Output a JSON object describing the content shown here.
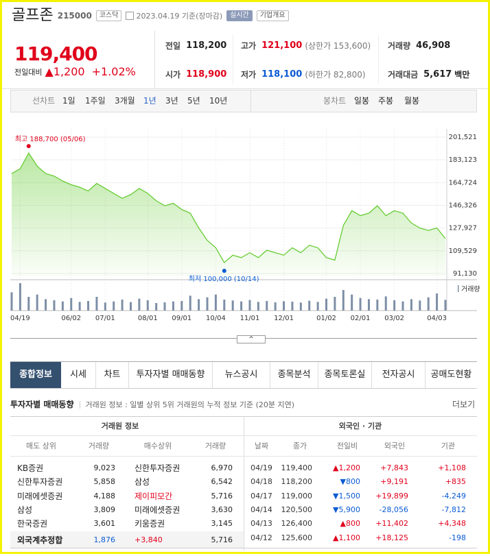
{
  "header": {
    "name": "골프존",
    "code": "215000",
    "market": "코스닥",
    "date": "2023.04.19 기준(장마감)",
    "realtime": "실시간",
    "overview": "기업개요"
  },
  "quote": {
    "price": "119,400",
    "change_label": "전일대비",
    "change": "▲1,200",
    "change_pct": "+1.02%"
  },
  "stats": [
    {
      "label": "전일",
      "value": "118,200",
      "color": "#222"
    },
    {
      "label": "고가",
      "value": "121,100",
      "sub": "(상한가 153,600)",
      "color": "#e0001b"
    },
    {
      "label": "거래량",
      "value": "46,908",
      "color": "#222"
    },
    {
      "label": "시가",
      "value": "118,900",
      "color": "#e0001b"
    },
    {
      "label": "저가",
      "value": "118,100",
      "sub": "(하한가 82,800)",
      "color": "#0a5bd3"
    },
    {
      "label": "거래대금",
      "value": "5,617",
      "unit": "백만",
      "color": "#222"
    }
  ],
  "chart_tabs": {
    "line_label": "선차트",
    "periods": [
      "1일",
      "1주일",
      "3개월",
      "1년",
      "3년",
      "5년",
      "10년"
    ],
    "candle_label": "봉차트",
    "candles": [
      "일봉",
      "주봉",
      "월봉"
    ]
  },
  "chart_data": {
    "type": "line",
    "categories": [
      null,
      "04/19",
      null,
      null,
      null,
      null,
      null,
      "06/02",
      null,
      null,
      null,
      "07/01",
      null,
      null,
      null,
      null,
      "08/01",
      null,
      null,
      null,
      "09/01",
      null,
      null,
      null,
      "10/04",
      null,
      null,
      null,
      "11/01",
      null,
      null,
      null,
      "12/01",
      null,
      null,
      null,
      null,
      "01/02",
      null,
      null,
      null,
      "02/01",
      null,
      null,
      null,
      "03/02",
      null,
      null,
      null,
      null,
      "04/03",
      null
    ],
    "values": [
      172000,
      176000,
      188700,
      178000,
      172000,
      170000,
      166000,
      163000,
      161000,
      158000,
      164000,
      160000,
      156000,
      152000,
      155000,
      160000,
      156000,
      150000,
      146000,
      148000,
      143000,
      140000,
      128000,
      118000,
      112000,
      100000,
      106000,
      104000,
      108000,
      104000,
      110000,
      108000,
      106000,
      112000,
      108000,
      114000,
      112000,
      104000,
      102000,
      130000,
      142000,
      138000,
      140000,
      146000,
      138000,
      142000,
      140000,
      132000,
      128000,
      126000,
      128000,
      119400
    ],
    "color": "#66cc33",
    "ylim": [
      91130,
      201521
    ],
    "yticks": [
      {
        "value": 201521,
        "label": "201,521"
      },
      {
        "value": 183123,
        "label": "183,123"
      },
      {
        "value": 164724,
        "label": "164,724"
      },
      {
        "value": 146326,
        "label": "146,326"
      },
      {
        "value": 127927,
        "label": "127,927"
      },
      {
        "value": 109529,
        "label": "109,529"
      },
      {
        "value": 91130,
        "label": "91,130"
      }
    ],
    "grid": true,
    "high_label": "최고 188,700 (05/06)",
    "low_label": "최저 100,000 (10/14)",
    "volume": {
      "name": "거래량",
      "color": "#7d8ea6",
      "values": [
        80000,
        120000,
        60000,
        70000,
        50000,
        45000,
        40000,
        55000,
        38000,
        42000,
        60000,
        35000,
        40000,
        48000,
        37000,
        52000,
        45000,
        33000,
        36000,
        40000,
        42000,
        65000,
        50000,
        58000,
        70000,
        48000,
        44000,
        40000,
        46000,
        38000,
        42000,
        36000,
        41000,
        39000,
        35000,
        43000,
        38000,
        52000,
        60000,
        90000,
        70000,
        55000,
        50000,
        48000,
        62000,
        45000,
        40000,
        50000,
        44000,
        58000,
        75000,
        46908
      ]
    }
  },
  "main_tabs": [
    "종합정보",
    "시세",
    "차트",
    "투자자별 매매동향",
    "뉴스공시",
    "종목분석",
    "종목토론실",
    "전자공시",
    "공매도현황"
  ],
  "investor": {
    "title": "투자자별 매매동향",
    "description": "거래원 정보 : 일별 상위 5위 거래원의 누적 정보 기준 (20분 지연)",
    "more": "더보기",
    "brokers": {
      "title": "거래원 정보",
      "columns": [
        "매도 상위",
        "거래량",
        "매수상위",
        "거래량"
      ],
      "rows": [
        [
          "KB증권",
          "9,023",
          "신한투자증권",
          "6,970"
        ],
        [
          "신한투자증권",
          "5,858",
          "삼성",
          "6,542"
        ],
        [
          "미래에셋증권",
          "4,188",
          "제이피모간",
          "5,716"
        ],
        [
          "삼성",
          "3,809",
          "미래에셋증권",
          "3,630"
        ],
        [
          "한국증권",
          "3,601",
          "키움증권",
          "3,145"
        ]
      ],
      "total": [
        "외국계추정합",
        "1,876",
        "+3,840",
        "5,716"
      ]
    },
    "flows": {
      "title": "외국인 · 기관",
      "columns": [
        "날짜",
        "종가",
        "전일비",
        "외국인",
        "기관"
      ],
      "rows": [
        [
          "04/19",
          "119,400",
          "▲1,200",
          "+7,843",
          "+1,108"
        ],
        [
          "04/18",
          "118,200",
          "▼800",
          "+9,191",
          "+835"
        ],
        [
          "04/17",
          "119,000",
          "▼1,500",
          "+19,899",
          "-4,249"
        ],
        [
          "04/14",
          "120,500",
          "▼5,900",
          "-28,056",
          "-7,812"
        ],
        [
          "04/13",
          "126,400",
          "▲800",
          "+11,402",
          "+4,348"
        ],
        [
          "04/12",
          "125,600",
          "▲1,100",
          "+18,125",
          "-198"
        ]
      ]
    }
  }
}
